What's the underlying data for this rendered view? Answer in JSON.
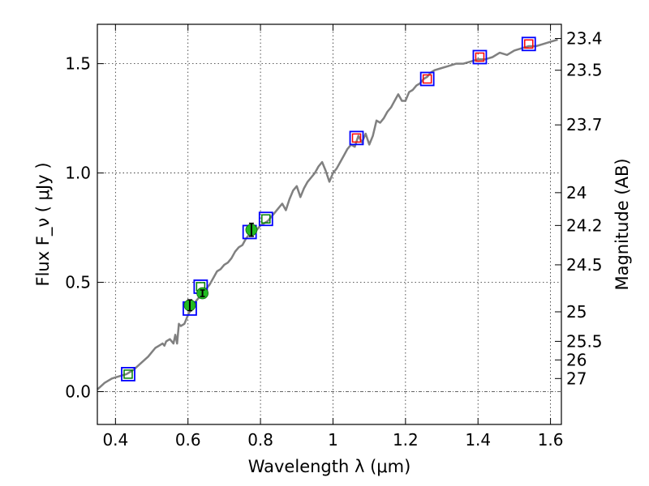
{
  "chart_data": {
    "type": "line",
    "title": "",
    "xlabel": "Wavelength  λ (μm)",
    "ylabel": "Flux  F_ν  ( μJy )",
    "ylabel_right": "Magnitude (AB)",
    "xlim": [
      0.35,
      1.63
    ],
    "ylim": [
      -0.15,
      1.68
    ],
    "grid": true,
    "legend": "none",
    "x_ticks": [
      {
        "value": 0.4,
        "label": "0.4"
      },
      {
        "value": 0.6,
        "label": "0.6"
      },
      {
        "value": 0.8,
        "label": "0.8"
      },
      {
        "value": 1.0,
        "label": "1"
      },
      {
        "value": 1.2,
        "label": "1.2"
      },
      {
        "value": 1.4,
        "label": "1.4"
      },
      {
        "value": 1.6,
        "label": "1.6"
      }
    ],
    "y_ticks": [
      {
        "value": 0.0,
        "label": "0.0"
      },
      {
        "value": 0.5,
        "label": "0.5"
      },
      {
        "value": 1.0,
        "label": "1.0"
      },
      {
        "value": 1.5,
        "label": "1.5"
      }
    ],
    "mag_ticks": [
      {
        "flux": 1.615,
        "label": "23.4"
      },
      {
        "flux": 1.47,
        "label": "23.5"
      },
      {
        "flux": 1.22,
        "label": "23.7"
      },
      {
        "flux": 0.91,
        "label": "24"
      },
      {
        "flux": 0.76,
        "label": "24.2"
      },
      {
        "flux": 0.58,
        "label": "24.5"
      },
      {
        "flux": 0.365,
        "label": "25"
      },
      {
        "flux": 0.23,
        "label": "25.5"
      },
      {
        "flux": 0.145,
        "label": "26"
      },
      {
        "flux": 0.06,
        "label": "27"
      }
    ],
    "series": [
      {
        "type": "line",
        "color": "#808080",
        "x": [
          0.35,
          0.37,
          0.39,
          0.41,
          0.43,
          0.45,
          0.47,
          0.49,
          0.5,
          0.51,
          0.52,
          0.53,
          0.535,
          0.54,
          0.55,
          0.56,
          0.565,
          0.57,
          0.575,
          0.58,
          0.59,
          0.6,
          0.61,
          0.62,
          0.63,
          0.64,
          0.65,
          0.66,
          0.67,
          0.68,
          0.69,
          0.7,
          0.71,
          0.72,
          0.73,
          0.74,
          0.75,
          0.76,
          0.77,
          0.78,
          0.79,
          0.8,
          0.81,
          0.82,
          0.83,
          0.84,
          0.85,
          0.86,
          0.87,
          0.88,
          0.89,
          0.9,
          0.91,
          0.92,
          0.93,
          0.94,
          0.95,
          0.96,
          0.97,
          0.98,
          0.99,
          1.0,
          1.01,
          1.02,
          1.03,
          1.04,
          1.05,
          1.06,
          1.07,
          1.08,
          1.09,
          1.1,
          1.11,
          1.12,
          1.13,
          1.14,
          1.15,
          1.16,
          1.17,
          1.18,
          1.19,
          1.2,
          1.21,
          1.22,
          1.23,
          1.24,
          1.25,
          1.26,
          1.27,
          1.28,
          1.3,
          1.32,
          1.34,
          1.36,
          1.38,
          1.4,
          1.42,
          1.44,
          1.46,
          1.48,
          1.5,
          1.52,
          1.54,
          1.56,
          1.58,
          1.6,
          1.62
        ],
        "y": [
          0.01,
          0.04,
          0.06,
          0.07,
          0.08,
          0.1,
          0.13,
          0.16,
          0.18,
          0.2,
          0.21,
          0.22,
          0.21,
          0.23,
          0.24,
          0.22,
          0.26,
          0.22,
          0.31,
          0.3,
          0.31,
          0.35,
          0.38,
          0.41,
          0.43,
          0.45,
          0.47,
          0.49,
          0.52,
          0.55,
          0.56,
          0.58,
          0.59,
          0.61,
          0.64,
          0.66,
          0.67,
          0.7,
          0.72,
          0.73,
          0.74,
          0.76,
          0.77,
          0.78,
          0.8,
          0.82,
          0.84,
          0.86,
          0.83,
          0.88,
          0.92,
          0.94,
          0.89,
          0.93,
          0.96,
          0.98,
          1.0,
          1.03,
          1.05,
          1.01,
          0.96,
          1.0,
          1.02,
          1.05,
          1.08,
          1.11,
          1.13,
          1.12,
          1.17,
          1.14,
          1.18,
          1.13,
          1.17,
          1.24,
          1.23,
          1.25,
          1.28,
          1.3,
          1.33,
          1.36,
          1.33,
          1.33,
          1.37,
          1.38,
          1.4,
          1.41,
          1.43,
          1.44,
          1.46,
          1.47,
          1.48,
          1.49,
          1.5,
          1.5,
          1.51,
          1.52,
          1.52,
          1.53,
          1.55,
          1.54,
          1.56,
          1.57,
          1.58,
          1.58,
          1.59,
          1.6,
          1.61
        ]
      },
      {
        "type": "squares",
        "outer_color": "#0000ff",
        "inner_color": "#008000",
        "x": [
          0.435,
          0.635,
          0.815
        ],
        "y": [
          0.08,
          0.48,
          0.79
        ]
      },
      {
        "type": "squares",
        "outer_color": "#0000ff",
        "inner_color": "#ff0000",
        "x": [
          1.065,
          1.26,
          1.405,
          1.54
        ],
        "y": [
          1.16,
          1.43,
          1.53,
          1.59
        ]
      },
      {
        "type": "squares",
        "outer_color": "#0000ff",
        "inner_color": "none",
        "x": [
          0.605,
          0.77
        ],
        "y": [
          0.38,
          0.73
        ]
      },
      {
        "type": "points-errorbars",
        "color": "#22bb22",
        "x": [
          0.605,
          0.64,
          0.775
        ],
        "y": [
          0.395,
          0.45,
          0.74
        ],
        "yerr": [
          0.025,
          0.015,
          0.03
        ]
      }
    ]
  }
}
